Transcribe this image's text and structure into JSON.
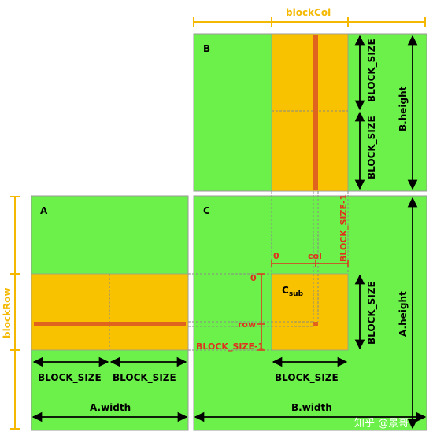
{
  "labels": {
    "matrix_a": "A",
    "matrix_b": "B",
    "matrix_c": "C",
    "block_col": "blockCol",
    "block_row": "blockRow",
    "block_size": "BLOCK_SIZE",
    "block_size_minus_1": "BLOCK_SIZE-1",
    "zero": "0",
    "col": "col",
    "row": "row",
    "c_sub_base": "C",
    "c_sub_suffix": "sub",
    "a_width": "A.width",
    "b_width": "B.width",
    "b_height": "B.height",
    "a_height": "A.height"
  },
  "watermark": "知乎 @景哥",
  "colors": {
    "matrix_fill": "#6cf04a",
    "block_fill": "#f8c200",
    "highlight": "#e0641e",
    "annotation_red": "#e0301e",
    "brace_orange": "#f5b800"
  }
}
